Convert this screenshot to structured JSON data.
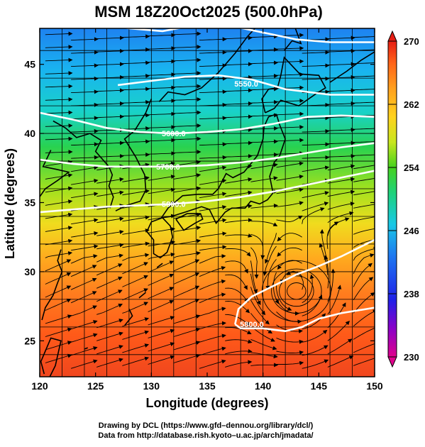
{
  "title": "MSM 18Z20Oct2025 (500.0hPa)",
  "xlabel": "Longitude (degrees)",
  "ylabel": "Latitude  (degrees)",
  "x_ticks": [
    "120",
    "125",
    "130",
    "135",
    "140",
    "145",
    "150"
  ],
  "y_ticks": [
    "25",
    "30",
    "35",
    "40",
    "45"
  ],
  "x_range": [
    120,
    150
  ],
  "y_range": [
    22.4,
    47.6
  ],
  "colorbar": {
    "tick_labels": [
      "230",
      "238",
      "246",
      "254",
      "262",
      "270"
    ],
    "range": [
      230,
      270
    ],
    "colors": [
      "#e0008c",
      "#8a00c8",
      "#2020e8",
      "#1e78f0",
      "#19c8e6",
      "#1ed27a",
      "#46d21e",
      "#c8e61e",
      "#ffd21e",
      "#ffa01e",
      "#ff6419",
      "#e61e14"
    ]
  },
  "contours": [
    {
      "label": "5550.0",
      "label_lon": 138.5,
      "label_lat": 43.6
    },
    {
      "label": "5600.0",
      "label_lon": 132.0,
      "label_lat": 40.0
    },
    {
      "label": "5700.0",
      "label_lon": 131.5,
      "label_lat": 37.6
    },
    {
      "label": "5800.0",
      "label_lon": 132.0,
      "label_lat": 34.9
    },
    {
      "label": "5800.0",
      "label_lon": 139.0,
      "label_lat": 26.2
    }
  ],
  "footer": {
    "line1": "Drawing by DCL (https://www.gfd–dennou.org/library/dcl/)",
    "line2": "Data from http://database.rish.kyoto–u.ac.jp/arch/jmadata/"
  }
}
